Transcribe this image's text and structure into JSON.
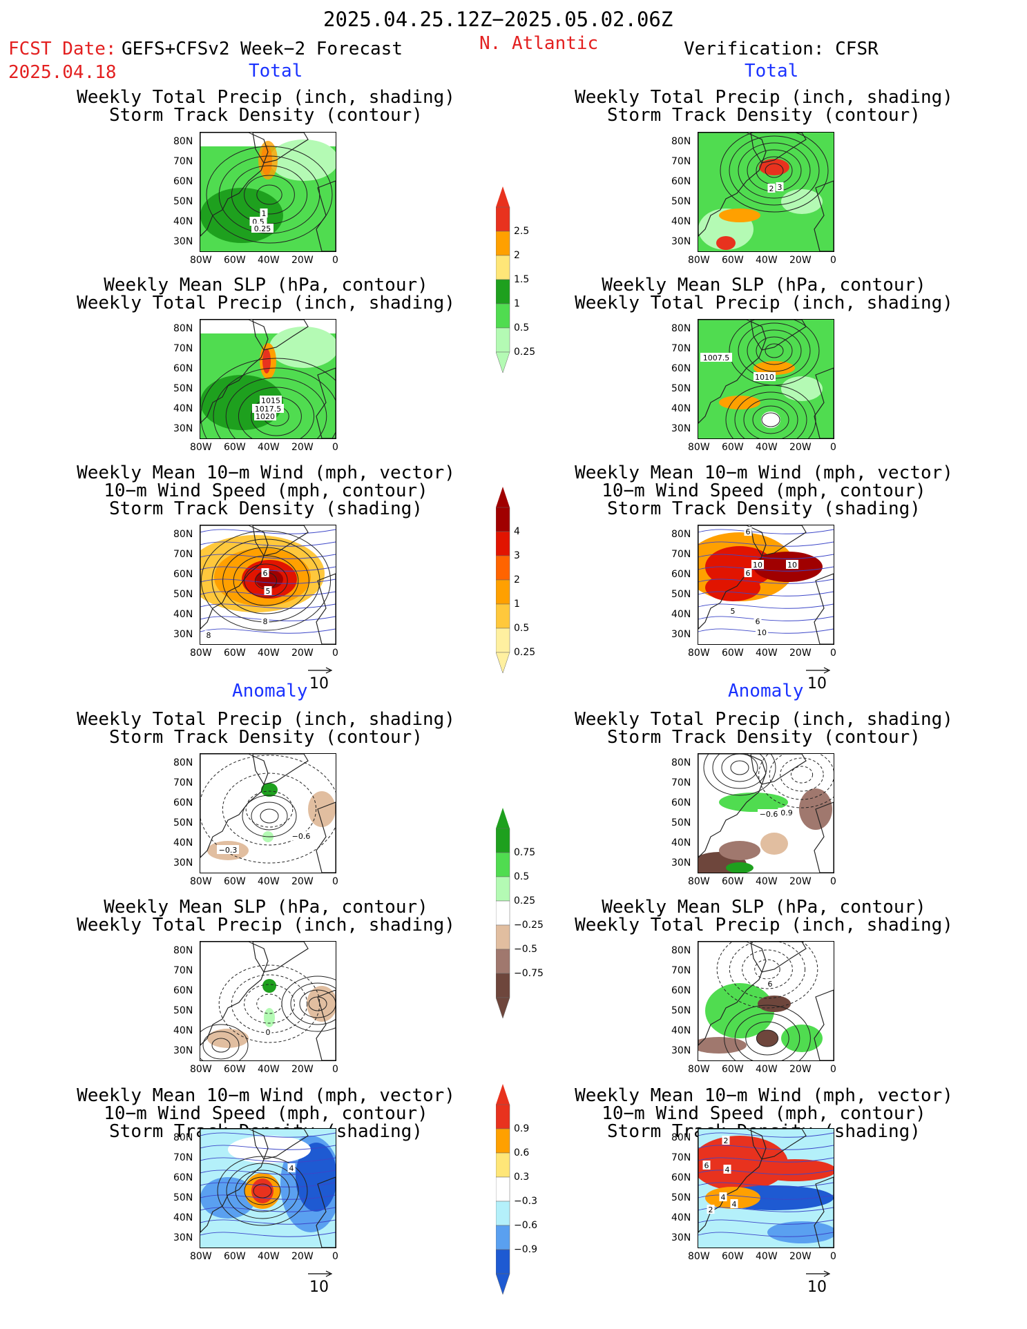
{
  "header": {
    "date_range": "2025.04.25.12Z−2025.05.02.06Z",
    "fcst_label": "FCST Date:",
    "fcst_model": "GEFS+CFSv2 Week−2 Forecast",
    "fcst_date": "2025.04.18",
    "region": "N. Atlantic",
    "verification": "Verification: CFSR"
  },
  "sections": {
    "total": "Total",
    "anomaly": "Anomaly"
  },
  "titles": {
    "precip_storm": [
      "Weekly Total Precip (inch, shading)",
      "Storm Track Density (contour)"
    ],
    "slp_precip": [
      "Weekly Mean SLP (hPa, contour)",
      "Weekly Total Precip (inch, shading)"
    ],
    "wind_storm": [
      "Weekly Mean 10−m Wind (mph, vector)",
      "10−m Wind Speed (mph, contour)",
      "Storm Track Density (shading)"
    ]
  },
  "axes": {
    "lat_ticks": [
      "80N",
      "70N",
      "60N",
      "50N",
      "40N",
      "30N"
    ],
    "lon_ticks": [
      "80W",
      "60W",
      "40W",
      "20W",
      "0"
    ]
  },
  "vector_ref": "10",
  "colorbars": {
    "precip_total": {
      "labels": [
        "2.5",
        "2",
        "1.5",
        "1",
        "0.5",
        "0.25"
      ],
      "colors": [
        "#e8321e",
        "#ffa000",
        "#ffe678",
        "#1ea01e",
        "#50dc50",
        "#b4fab4"
      ]
    },
    "storm_total": {
      "labels": [
        "4",
        "3",
        "2",
        "1",
        "0.5",
        "0.25"
      ],
      "colors": [
        "#a00000",
        "#e11400",
        "#ff6400",
        "#ffa000",
        "#ffc83c",
        "#fff0a0"
      ]
    },
    "precip_anom": {
      "labels": [
        "0.75",
        "0.5",
        "0.25",
        "−0.25",
        "−0.5",
        "−0.75"
      ],
      "colors": [
        "#1ea01e",
        "#50dc50",
        "#b4fab4",
        "#ffffff",
        "#e1bea0",
        "#a0786e",
        "#6e463c"
      ]
    },
    "storm_anom": {
      "labels": [
        "0.9",
        "0.6",
        "0.3",
        "−0.3",
        "−0.6",
        "−0.9"
      ],
      "colors": [
        "#e8321e",
        "#ffa000",
        "#ffe678",
        "#ffffff",
        "#b4f0fa",
        "#5aa0f0",
        "#1e5ad2"
      ]
    }
  },
  "panel_labels": {
    "fc_precip_total": [
      "1",
      "0.5",
      "0.25"
    ],
    "obs_precip_total": [
      "2",
      "3"
    ],
    "fc_slp_total": [
      "1015",
      "1017.5",
      "1020"
    ],
    "obs_slp_total": [
      "1007.5",
      "1010"
    ],
    "fc_wind_total": [
      "6",
      "5",
      "8",
      "8"
    ],
    "obs_wind_total": [
      "6",
      "10",
      "10",
      "6",
      "5",
      "6",
      "10"
    ],
    "fc_precip_anom": [
      "−0.3",
      "−0.6"
    ],
    "obs_precip_anom": [
      "−0.6",
      "0.9"
    ],
    "fc_slp_anom": [
      "0"
    ],
    "obs_slp_anom": [
      "6"
    ],
    "fc_wind_anom": [
      "4"
    ],
    "obs_wind_anom": [
      "2",
      "6",
      "4",
      "4",
      "2",
      "4"
    ]
  },
  "chart_data": [
    {
      "type": "heatmap",
      "title": "Weekly Total Precip (inch, shading) / Storm Track Density (contour)",
      "column": "GEFS+CFSv2 Week−2 Forecast",
      "section": "Total",
      "xlim": [
        "80W",
        "0"
      ],
      "ylim": [
        "25N",
        "85N"
      ]
    },
    {
      "type": "heatmap",
      "title": "Weekly Total Precip (inch, shading) / Storm Track Density (contour)",
      "column": "Verification: CFSR",
      "section": "Total",
      "xlim": [
        "80W",
        "0"
      ],
      "ylim": [
        "25N",
        "85N"
      ]
    },
    {
      "type": "heatmap",
      "title": "Weekly Mean SLP (hPa, contour) / Weekly Total Precip (inch, shading)",
      "column": "GEFS+CFSv2 Week−2 Forecast",
      "section": "Total",
      "contour_labels": [
        1015,
        1017.5,
        1020
      ]
    },
    {
      "type": "heatmap",
      "title": "Weekly Mean SLP (hPa, contour) / Weekly Total Precip (inch, shading)",
      "column": "Verification: CFSR",
      "section": "Total",
      "contour_labels": [
        1007.5,
        1010
      ]
    },
    {
      "type": "heatmap",
      "title": "Weekly Mean 10−m Wind / 10−m Wind Speed / Storm Track Density",
      "column": "GEFS+CFSv2 Week−2 Forecast",
      "section": "Total"
    },
    {
      "type": "heatmap",
      "title": "Weekly Mean 10−m Wind / 10−m Wind Speed / Storm Track Density",
      "column": "Verification: CFSR",
      "section": "Total"
    },
    {
      "type": "heatmap",
      "title": "Weekly Total Precip (inch, shading) / Storm Track Density (contour)",
      "column": "GEFS+CFSv2 Week−2 Forecast",
      "section": "Anomaly"
    },
    {
      "type": "heatmap",
      "title": "Weekly Total Precip (inch, shading) / Storm Track Density (contour)",
      "column": "Verification: CFSR",
      "section": "Anomaly"
    },
    {
      "type": "heatmap",
      "title": "Weekly Mean SLP (hPa, contour) / Weekly Total Precip (inch, shading)",
      "column": "GEFS+CFSv2 Week−2 Forecast",
      "section": "Anomaly"
    },
    {
      "type": "heatmap",
      "title": "Weekly Mean SLP (hPa, contour) / Weekly Total Precip (inch, shading)",
      "column": "Verification: CFSR",
      "section": "Anomaly"
    },
    {
      "type": "heatmap",
      "title": "Weekly Mean 10−m Wind / 10−m Wind Speed / Storm Track Density",
      "column": "GEFS+CFSv2 Week−2 Forecast",
      "section": "Anomaly"
    },
    {
      "type": "heatmap",
      "title": "Weekly Mean 10−m Wind / 10−m Wind Speed / Storm Track Density",
      "column": "Verification: CFSR",
      "section": "Anomaly"
    }
  ]
}
